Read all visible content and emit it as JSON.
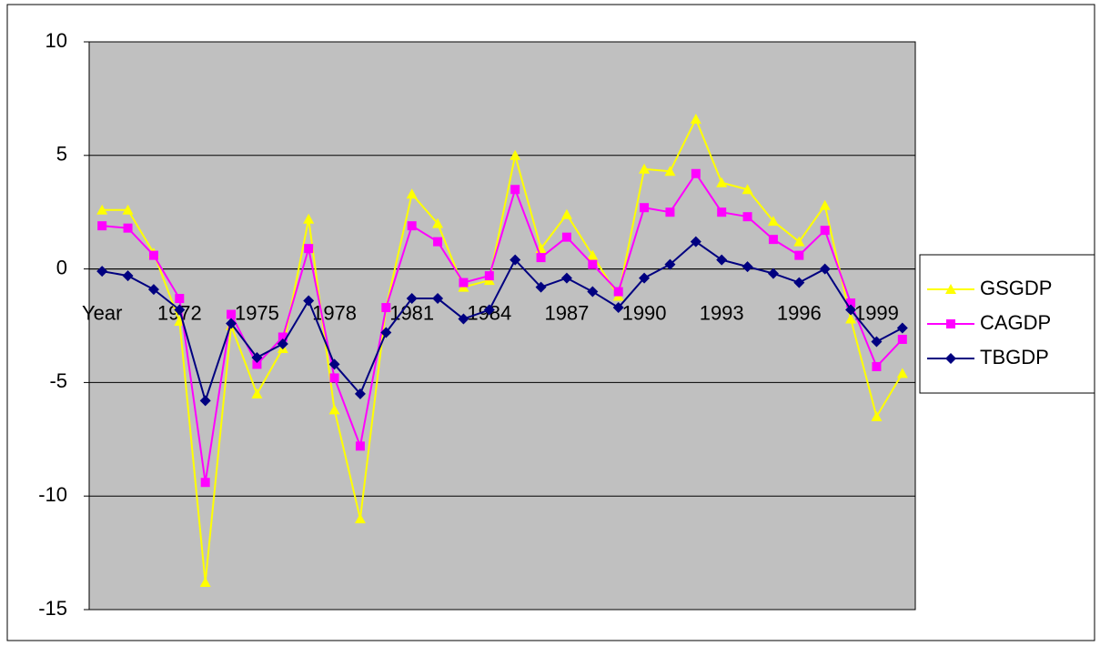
{
  "chart_data": {
    "type": "line",
    "categories": [
      "Year",
      null,
      null,
      "1972",
      null,
      null,
      "1975",
      null,
      null,
      "1978",
      null,
      null,
      "1981",
      null,
      null,
      "1984",
      null,
      null,
      "1987",
      null,
      null,
      "1990",
      null,
      null,
      "1993",
      null,
      null,
      "1996",
      null,
      null,
      "1999",
      null
    ],
    "series": [
      {
        "name": "GSGDP",
        "color": "#ffff00",
        "marker": "triangle",
        "values": [
          2.6,
          2.6,
          0.7,
          -2.3,
          -13.8,
          -2.5,
          -5.5,
          -3.5,
          2.2,
          -6.2,
          -11.0,
          -1.7,
          3.3,
          2.0,
          -0.8,
          -0.5,
          5.0,
          0.9,
          2.4,
          0.6,
          -1.2,
          4.4,
          4.3,
          6.6,
          3.8,
          3.5,
          2.1,
          1.2,
          2.8,
          -2.2,
          -6.5,
          -4.6
        ]
      },
      {
        "name": "CAGDP",
        "color": "#ff00ff",
        "marker": "square",
        "values": [
          1.9,
          1.8,
          0.6,
          -1.3,
          -9.4,
          -2.0,
          -4.2,
          -3.0,
          0.9,
          -4.8,
          -7.8,
          -1.7,
          1.9,
          1.2,
          -0.6,
          -0.3,
          3.5,
          0.5,
          1.4,
          0.2,
          -1.0,
          2.7,
          2.5,
          4.2,
          2.5,
          2.3,
          1.3,
          0.6,
          1.7,
          -1.5,
          -4.3,
          -3.1
        ]
      },
      {
        "name": "TBGDP",
        "color": "#000080",
        "marker": "diamond",
        "values": [
          -0.1,
          -0.3,
          -0.9,
          -1.8,
          -5.8,
          -2.4,
          -3.9,
          -3.3,
          -1.4,
          -4.2,
          -5.5,
          -2.8,
          -1.3,
          -1.3,
          -2.2,
          -1.8,
          0.4,
          -0.8,
          -0.4,
          -1.0,
          -1.7,
          -0.4,
          0.2,
          1.2,
          0.4,
          0.1,
          -0.2,
          -0.6,
          0.0,
          -1.8,
          -3.2,
          -2.6
        ]
      }
    ],
    "ylim": [
      -15,
      10
    ],
    "yticks": [
      -15,
      -10,
      -5,
      0,
      5,
      10
    ],
    "grid": true,
    "legend": "right",
    "plot_background": "#c0c0c0"
  }
}
